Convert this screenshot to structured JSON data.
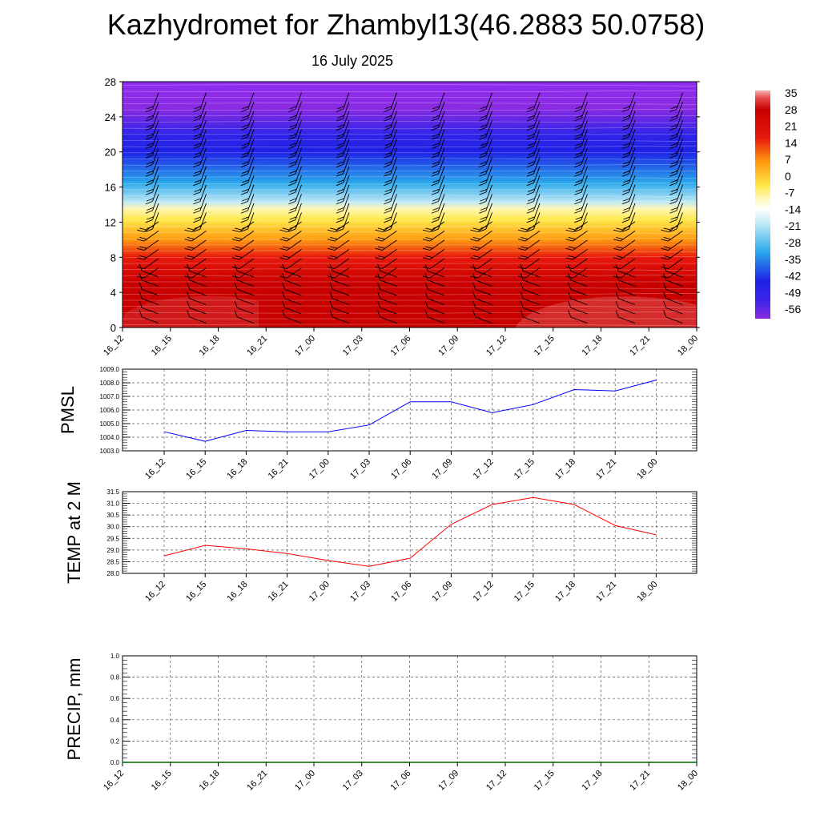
{
  "header": {
    "title": "Kazhydromet for Zhambyl13(46.2883 50.0758)",
    "subtitle": "16 July 2025"
  },
  "chart_data": [
    {
      "type": "heatmap",
      "title": "",
      "xlabel": "",
      "ylabel": "",
      "x_ticks": [
        "16_12",
        "16_15",
        "16_18",
        "16_21",
        "17_00",
        "17_03",
        "17_06",
        "17_09",
        "17_12",
        "17_15",
        "17_18",
        "17_21",
        "18_00"
      ],
      "y_ticks": [
        0,
        4,
        8,
        12,
        16,
        20,
        24,
        28
      ],
      "ylim": [
        0,
        28
      ],
      "colorbar_labels": [
        35,
        28,
        21,
        14,
        7,
        0,
        -7,
        -14,
        -21,
        -28,
        -35,
        -42,
        -49,
        -56
      ],
      "colorbar_range": [
        -60,
        36
      ],
      "grid": false,
      "legend_placement": "right",
      "colors": {
        "purple": "#8a2be2",
        "blue": "#1e22e6",
        "cyan": "#2aa8ec",
        "light_cyan": "#bfe8f5",
        "yellow": "#ffe84a",
        "orange": "#ff9a10",
        "red": "#e8180c",
        "dark_red": "#c80000"
      }
    },
    {
      "type": "line",
      "ylabel": "PMSL",
      "x": [
        "16_12",
        "16_15",
        "16_18",
        "16_21",
        "17_00",
        "17_03",
        "17_06",
        "17_09",
        "17_12",
        "17_15",
        "17_18",
        "17_21",
        "18_00"
      ],
      "ylim": [
        1003.0,
        1009.0
      ],
      "y_ticks": [
        "1003.0",
        "1004.0",
        "1005.0",
        "1006.0",
        "1007.0",
        "1008.0",
        "1009.0"
      ],
      "series": [
        {
          "color": "#0000ff",
          "values": [
            1004.4,
            1003.7,
            1004.5,
            1004.4,
            1004.4,
            1004.9,
            1006.6,
            1006.6,
            1005.8,
            1006.4,
            1007.5,
            1007.4,
            1008.2
          ]
        }
      ],
      "grid": true
    },
    {
      "type": "line",
      "ylabel": "TEMP at 2 M",
      "x": [
        "16_12",
        "16_15",
        "16_18",
        "16_21",
        "17_00",
        "17_03",
        "17_06",
        "17_09",
        "17_12",
        "17_15",
        "17_18",
        "17_21",
        "18_00"
      ],
      "ylim": [
        28.0,
        31.5
      ],
      "y_ticks": [
        "28.0",
        "28.5",
        "29.0",
        "29.5",
        "30.0",
        "30.5",
        "31.0",
        "31.5"
      ],
      "series": [
        {
          "color": "#ff0000",
          "values": [
            28.75,
            29.2,
            29.05,
            28.85,
            28.55,
            28.3,
            28.65,
            30.1,
            30.95,
            31.25,
            30.95,
            30.05,
            29.65
          ]
        }
      ],
      "grid": true
    },
    {
      "type": "line",
      "ylabel": "PRECIP, mm",
      "x": [
        "16_12",
        "16_15",
        "16_18",
        "16_21",
        "17_00",
        "17_03",
        "17_06",
        "17_09",
        "17_12",
        "17_15",
        "17_18",
        "17_21",
        "18_00"
      ],
      "ylim": [
        0.0,
        1.0
      ],
      "y_ticks": [
        "0.0",
        "0.2",
        "0.4",
        "0.6",
        "0.8",
        "1.0"
      ],
      "series": [
        {
          "color": "#006400",
          "values": [
            0,
            0,
            0,
            0,
            0,
            0,
            0,
            0,
            0,
            0,
            0,
            0,
            0
          ]
        }
      ],
      "grid": true
    }
  ]
}
